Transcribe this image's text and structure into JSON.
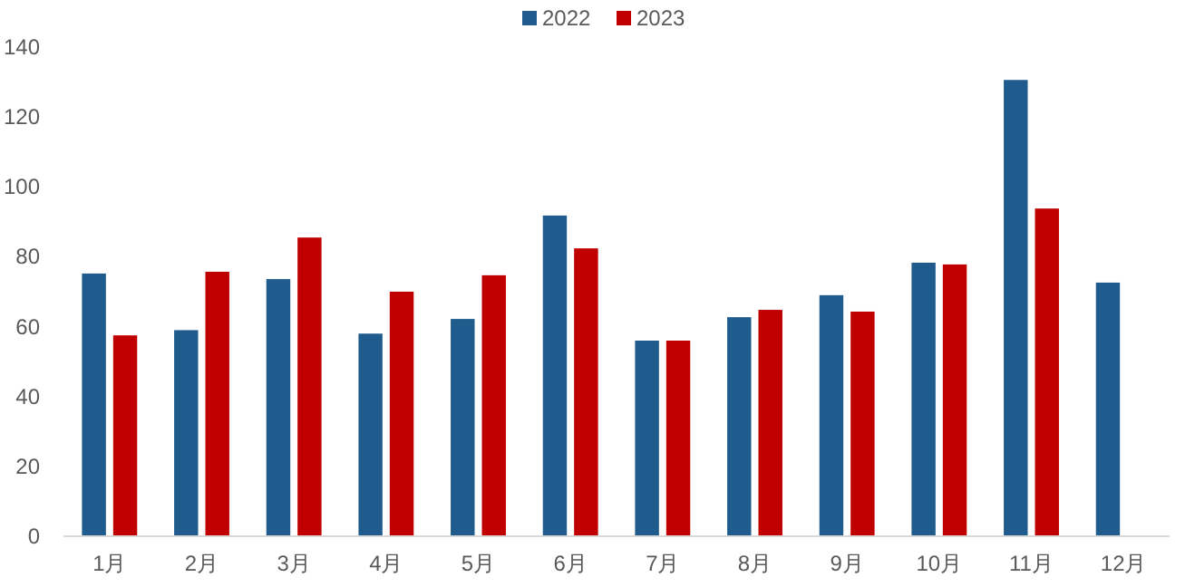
{
  "chart_data": {
    "type": "bar",
    "categories": [
      "1月",
      "2月",
      "3月",
      "4月",
      "5月",
      "6月",
      "7月",
      "8月",
      "9月",
      "10月",
      "11月",
      "12月"
    ],
    "series": [
      {
        "name": "2022",
        "color": "#1f5b8c",
        "values": [
          75.2,
          59,
          73.6,
          58,
          62.2,
          91.8,
          56,
          62.7,
          69,
          78.3,
          130.6,
          72.6
        ]
      },
      {
        "name": "2023",
        "color": "#c00000",
        "values": [
          57.5,
          75.7,
          85.5,
          70,
          74.7,
          82.4,
          56,
          64.8,
          64.3,
          77.8,
          93.8,
          null
        ]
      }
    ],
    "ylim": [
      0,
      140
    ],
    "yticks": [
      0,
      20,
      40,
      60,
      80,
      100,
      120,
      140
    ],
    "grid": false,
    "legend": "top"
  }
}
